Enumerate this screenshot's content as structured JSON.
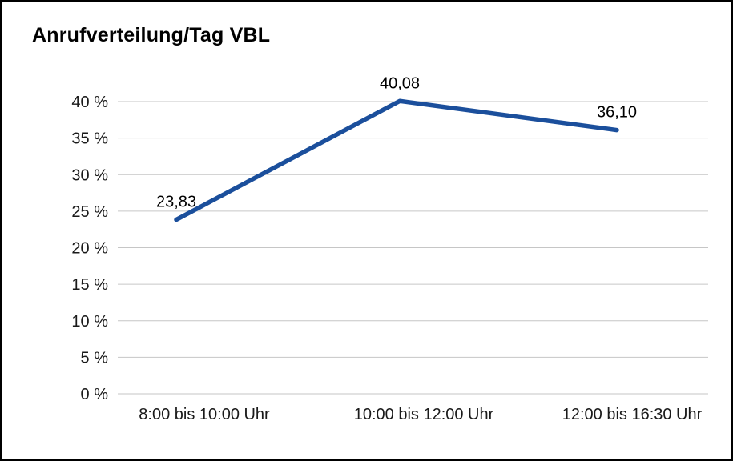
{
  "page": {
    "title": "Anrufverteilung/Tag VBL"
  },
  "chart_data": {
    "type": "line",
    "title": "Anrufverteilung/Tag VBL",
    "categories": [
      "8:00 bis 10:00 Uhr",
      "10:00 bis 12:00 Uhr",
      "12:00 bis 16:30 Uhr"
    ],
    "values": [
      23.83,
      40.08,
      36.1
    ],
    "value_labels": [
      "23,83",
      "40,08",
      "36,10"
    ],
    "xlabel": "",
    "ylabel": "",
    "ylim": [
      0,
      40
    ],
    "ytick_step": 5,
    "ytick_labels": [
      "0 %",
      "5 %",
      "10 %",
      "15 %",
      "20 %",
      "25 %",
      "30 %",
      "35 %",
      "40 %"
    ],
    "grid": "horizontal",
    "legend": "none",
    "line_color": "#1b4f9c",
    "grid_color": "#c6c6c6",
    "text_color": "#1a1a1a"
  }
}
